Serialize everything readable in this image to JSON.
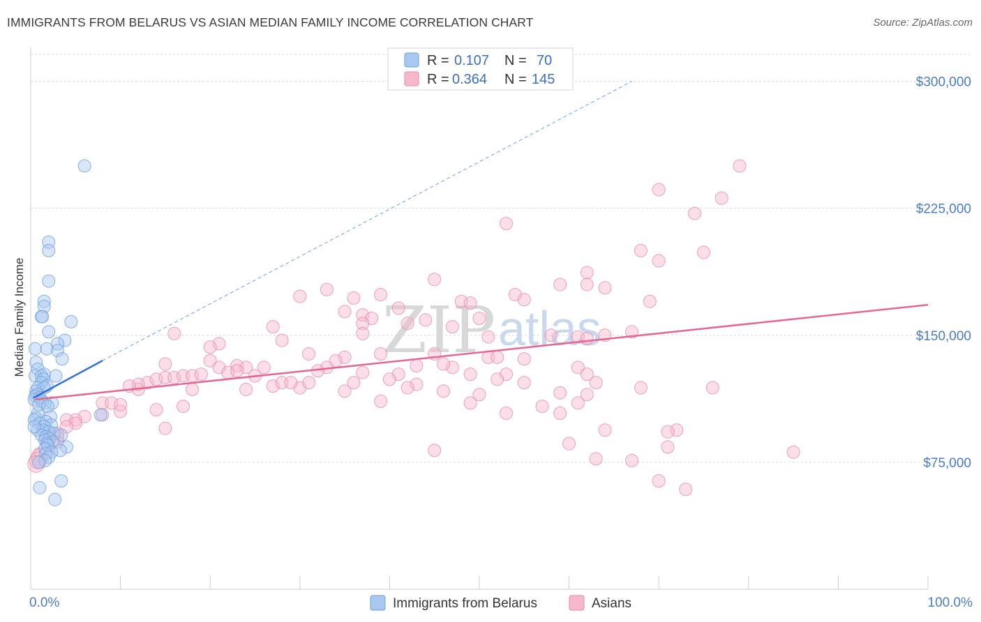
{
  "header": {
    "title": "IMMIGRANTS FROM BELARUS VS ASIAN MEDIAN FAMILY INCOME CORRELATION CHART",
    "source": "Source: ZipAtlas.com"
  },
  "watermark": {
    "zip": "ZIP",
    "atlas": "atlas"
  },
  "legend": {
    "rows": [
      {
        "r_label": "R =",
        "r_value": "0.107",
        "n_label": "N =",
        "n_value": "70",
        "color": "#a8c8f0",
        "stroke": "#6d9fdf"
      },
      {
        "r_label": "R =",
        "r_value": "0.364",
        "n_label": "N =",
        "n_value": "145",
        "color": "#f6b8cb",
        "stroke": "#e98aa8"
      }
    ]
  },
  "bottom_legend": [
    {
      "label": "Immigrants from Belarus",
      "color": "#a8c8f0",
      "stroke": "#6d9fdf"
    },
    {
      "label": "Asians",
      "color": "#f6b8cb",
      "stroke": "#e98aa8"
    }
  ],
  "chart_data": {
    "type": "scatter",
    "title": "IMMIGRANTS FROM BELARUS VS ASIAN MEDIAN FAMILY INCOME CORRELATION CHART",
    "xlabel": "",
    "ylabel": "Median Family Income",
    "xlim": [
      0,
      100
    ],
    "ylim": [
      0,
      320000
    ],
    "x_tick_labels": [
      "0.0%",
      "100.0%"
    ],
    "y_ticks": [
      75000,
      150000,
      225000,
      300000
    ],
    "y_tick_labels": [
      "$75,000",
      "$150,000",
      "$225,000",
      "$300,000"
    ],
    "grid": true,
    "series": [
      {
        "name": "Immigrants from Belarus",
        "color": "#6d9fdf",
        "fill": "#a8c8f0",
        "trend": {
          "x": [
            0.3,
            8.0
          ],
          "y": [
            113000,
            135000
          ],
          "extended_to": [
            67,
            300000
          ]
        },
        "points": [
          [
            6,
            250000
          ],
          [
            2,
            205000
          ],
          [
            2,
            200000
          ],
          [
            2,
            182000
          ],
          [
            1.5,
            170000
          ],
          [
            1.5,
            167000
          ],
          [
            1.2,
            161000
          ],
          [
            1.3,
            161000
          ],
          [
            4.5,
            158000
          ],
          [
            2,
            152000
          ],
          [
            3.8,
            147000
          ],
          [
            3,
            145000
          ],
          [
            0.5,
            142000
          ],
          [
            1.8,
            142000
          ],
          [
            3,
            141000
          ],
          [
            3.5,
            136000
          ],
          [
            0.6,
            134000
          ],
          [
            0.8,
            130000
          ],
          [
            1.5,
            127000
          ],
          [
            2.8,
            126000
          ],
          [
            0.5,
            126000
          ],
          [
            1.2,
            126000
          ],
          [
            1.4,
            124000
          ],
          [
            1.2,
            122000
          ],
          [
            1.8,
            120000
          ],
          [
            0.8,
            119000
          ],
          [
            1.5,
            119000
          ],
          [
            0.6,
            117000
          ],
          [
            0.7,
            115000
          ],
          [
            0.5,
            114000
          ],
          [
            1.0,
            113000
          ],
          [
            0.4,
            112000
          ],
          [
            1.3,
            111000
          ],
          [
            2.4,
            110000
          ],
          [
            1.6,
            110000
          ],
          [
            0.8,
            104000
          ],
          [
            2.2,
            102000
          ],
          [
            0.6,
            101000
          ],
          [
            0.4,
            100000
          ],
          [
            1.7,
            99000
          ],
          [
            1.0,
            98000
          ],
          [
            2.3,
            97000
          ],
          [
            1.5,
            96000
          ],
          [
            0.8,
            94000
          ],
          [
            1.4,
            94000
          ],
          [
            2.0,
            93000
          ],
          [
            2.6,
            92000
          ],
          [
            3.4,
            91000
          ],
          [
            1.2,
            91000
          ],
          [
            1.7,
            90000
          ],
          [
            2.1,
            89000
          ],
          [
            1.6,
            88000
          ],
          [
            2.5,
            87000
          ],
          [
            1.8,
            86000
          ],
          [
            1.9,
            85000
          ],
          [
            4.0,
            84000
          ],
          [
            1.6,
            83000
          ],
          [
            3.3,
            82000
          ],
          [
            2.3,
            81000
          ],
          [
            1.7,
            80000
          ],
          [
            2.0,
            78000
          ],
          [
            1.6,
            76000
          ],
          [
            0.9,
            75000
          ],
          [
            7.8,
            103000
          ],
          [
            1.0,
            60000
          ],
          [
            3.4,
            64000
          ],
          [
            2.7,
            53000
          ],
          [
            0.4,
            96000
          ],
          [
            0.9,
            109000
          ],
          [
            1.9,
            108000
          ]
        ]
      },
      {
        "name": "Asians",
        "color": "#e98aa8",
        "fill": "#f6b8cb",
        "trend": {
          "x": [
            0.5,
            100
          ],
          "y": [
            112000,
            168000
          ]
        },
        "points": [
          [
            79,
            250000
          ],
          [
            70,
            236000
          ],
          [
            77,
            231000
          ],
          [
            74,
            222000
          ],
          [
            53,
            216000
          ],
          [
            68,
            200000
          ],
          [
            75,
            199000
          ],
          [
            70,
            194000
          ],
          [
            62,
            187000
          ],
          [
            45,
            183000
          ],
          [
            62,
            180000
          ],
          [
            33,
            177000
          ],
          [
            39,
            174000
          ],
          [
            30,
            173000
          ],
          [
            36,
            172000
          ],
          [
            54,
            174000
          ],
          [
            69,
            170000
          ],
          [
            48,
            170000
          ],
          [
            55,
            171000
          ],
          [
            49,
            169000
          ],
          [
            41,
            166000
          ],
          [
            35,
            164000
          ],
          [
            37,
            162000
          ],
          [
            38,
            160000
          ],
          [
            50,
            160000
          ],
          [
            44,
            159000
          ],
          [
            42,
            157000
          ],
          [
            37,
            157000
          ],
          [
            47,
            155000
          ],
          [
            27,
            155000
          ],
          [
            16,
            151000
          ],
          [
            37,
            151000
          ],
          [
            64,
            150000
          ],
          [
            58,
            150000
          ],
          [
            61,
            149000
          ],
          [
            51,
            149000
          ],
          [
            62,
            148000
          ],
          [
            28,
            147000
          ],
          [
            21,
            145000
          ],
          [
            20,
            143000
          ],
          [
            31,
            139000
          ],
          [
            45,
            139000
          ],
          [
            39,
            139000
          ],
          [
            51,
            137000
          ],
          [
            35,
            137000
          ],
          [
            52,
            137000
          ],
          [
            55,
            136000
          ],
          [
            20,
            135000
          ],
          [
            34,
            135000
          ],
          [
            15,
            133000
          ],
          [
            23,
            132000
          ],
          [
            24,
            131000
          ],
          [
            21,
            131000
          ],
          [
            26,
            131000
          ],
          [
            33,
            131000
          ],
          [
            32,
            129000
          ],
          [
            22,
            128000
          ],
          [
            37,
            128000
          ],
          [
            41,
            127000
          ],
          [
            49,
            127000
          ],
          [
            53,
            127000
          ],
          [
            61,
            131000
          ],
          [
            62,
            127000
          ],
          [
            52,
            124000
          ],
          [
            63,
            122000
          ],
          [
            55,
            122000
          ],
          [
            36,
            122000
          ],
          [
            43,
            121000
          ],
          [
            42,
            119000
          ],
          [
            68,
            119000
          ],
          [
            76,
            119000
          ],
          [
            30,
            119000
          ],
          [
            27,
            120000
          ],
          [
            24,
            118000
          ],
          [
            18,
            118000
          ],
          [
            35,
            117000
          ],
          [
            46,
            117000
          ],
          [
            59,
            116000
          ],
          [
            62,
            115000
          ],
          [
            50,
            115000
          ],
          [
            39,
            111000
          ],
          [
            49,
            110000
          ],
          [
            61,
            110000
          ],
          [
            57,
            108000
          ],
          [
            53,
            104000
          ],
          [
            59,
            104000
          ],
          [
            17,
            108000
          ],
          [
            14,
            106000
          ],
          [
            10,
            105000
          ],
          [
            8,
            103000
          ],
          [
            6,
            102000
          ],
          [
            5,
            100000
          ],
          [
            4,
            100000
          ],
          [
            5,
            98000
          ],
          [
            4,
            96000
          ],
          [
            15,
            95000
          ],
          [
            64,
            94000
          ],
          [
            72,
            94000
          ],
          [
            71,
            93000
          ],
          [
            3,
            92000
          ],
          [
            2,
            91000
          ],
          [
            3,
            90000
          ],
          [
            2,
            89000
          ],
          [
            2,
            88000
          ],
          [
            3,
            87000
          ],
          [
            60,
            86000
          ],
          [
            71,
            84000
          ],
          [
            45,
            82000
          ],
          [
            85,
            81000
          ],
          [
            2,
            84000
          ],
          [
            1,
            80000
          ],
          [
            1,
            78000
          ],
          [
            0.8,
            76000
          ],
          [
            0.6,
            74000
          ],
          [
            63,
            77000
          ],
          [
            67,
            76000
          ],
          [
            70,
            64000
          ],
          [
            73,
            59000
          ],
          [
            8,
            110000
          ],
          [
            9,
            110000
          ],
          [
            10,
            109000
          ],
          [
            12,
            118000
          ],
          [
            13,
            122000
          ],
          [
            12,
            121000
          ],
          [
            11,
            120000
          ],
          [
            14,
            124000
          ],
          [
            15,
            125000
          ],
          [
            16,
            125000
          ],
          [
            17,
            126000
          ],
          [
            18,
            126000
          ],
          [
            19,
            127000
          ],
          [
            23,
            129000
          ],
          [
            25,
            126000
          ],
          [
            28,
            122000
          ],
          [
            29,
            122000
          ],
          [
            31,
            122000
          ],
          [
            47,
            131000
          ],
          [
            46,
            133000
          ],
          [
            40,
            124000
          ],
          [
            43,
            132000
          ],
          [
            67,
            152000
          ],
          [
            64,
            178000
          ],
          [
            59,
            180000
          ]
        ]
      }
    ]
  }
}
